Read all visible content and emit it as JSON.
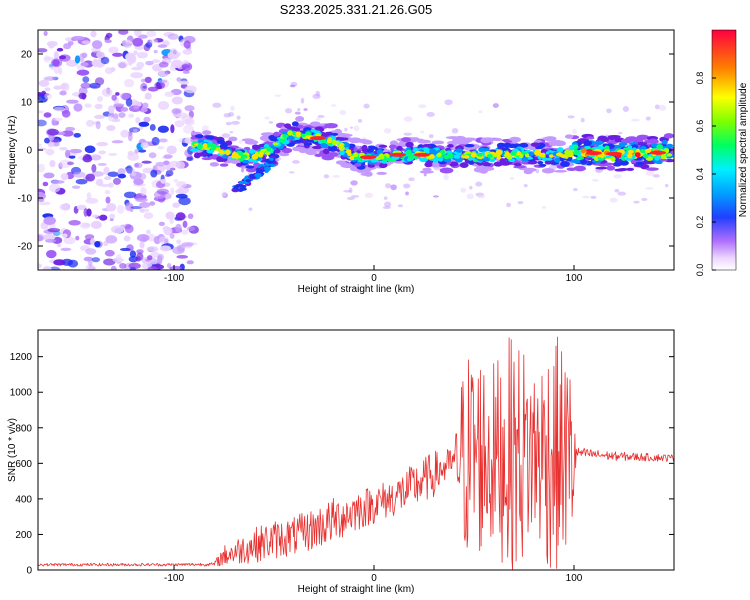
{
  "title": "S233.2025.331.21.26.G05",
  "colors": {
    "snr_line": "#e8302f",
    "axis": "#000000"
  },
  "chart_data": [
    {
      "type": "heatmap",
      "xlabel": "Height of straight line (km)",
      "ylabel": "Frequency (Hz)",
      "xlim": [
        -168,
        150
      ],
      "ylim": [
        -25,
        25
      ],
      "x_ticks": [
        -100,
        0,
        100
      ],
      "y_ticks": [
        -20,
        -10,
        0,
        10,
        20
      ],
      "colorbar": {
        "label": "Normalized spectral amplitude",
        "range": [
          0,
          1
        ],
        "ticks": [
          0.0,
          0.2,
          0.4,
          0.6,
          0.8
        ],
        "colormap": "rainbow (white-violet-blue-cyan-green-yellow-red)"
      },
      "ridge": {
        "x": [
          -88,
          -80,
          -70,
          -60,
          -52,
          -45,
          -40,
          -35,
          -30,
          -25,
          -20,
          -15,
          -10,
          0,
          10,
          20,
          40,
          60,
          80,
          95,
          100,
          120,
          148
        ],
        "y": [
          1.0,
          0.5,
          -1.0,
          -1.5,
          0.0,
          2.5,
          3.5,
          3.2,
          2.8,
          2.0,
          1.5,
          0.5,
          -1.5,
          -1.5,
          -1.0,
          -1.0,
          -1.0,
          -1.0,
          -1.0,
          -1.0,
          -0.5,
          -0.8,
          -0.5
        ]
      },
      "noise_region_x": [
        -168,
        -90
      ]
    },
    {
      "type": "line",
      "xlabel": "Height of straight line (km)",
      "ylabel": "SNR (10 * v/v)",
      "xlim": [
        -168,
        150
      ],
      "ylim": [
        0,
        1350
      ],
      "x_ticks": [
        -100,
        0,
        100
      ],
      "y_ticks": [
        0,
        200,
        400,
        600,
        800,
        1000,
        1200
      ],
      "series_envelope": {
        "x": [
          -168,
          -130,
          -100,
          -80,
          -75,
          -60,
          -50,
          -40,
          -30,
          -20,
          -10,
          0,
          10,
          20,
          30,
          40,
          45,
          50,
          60,
          70,
          80,
          90,
          100,
          101,
          120,
          150
        ],
        "mean": [
          30,
          30,
          30,
          32,
          80,
          140,
          170,
          190,
          230,
          280,
          330,
          370,
          410,
          470,
          540,
          610,
          640,
          660,
          640,
          650,
          660,
          650,
          640,
          660,
          640,
          630
        ],
        "amplitude": [
          8,
          8,
          8,
          10,
          60,
          100,
          110,
          110,
          120,
          130,
          120,
          110,
          110,
          130,
          130,
          80,
          580,
          620,
          540,
          700,
          520,
          700,
          500,
          30,
          25,
          20
        ]
      }
    }
  ]
}
